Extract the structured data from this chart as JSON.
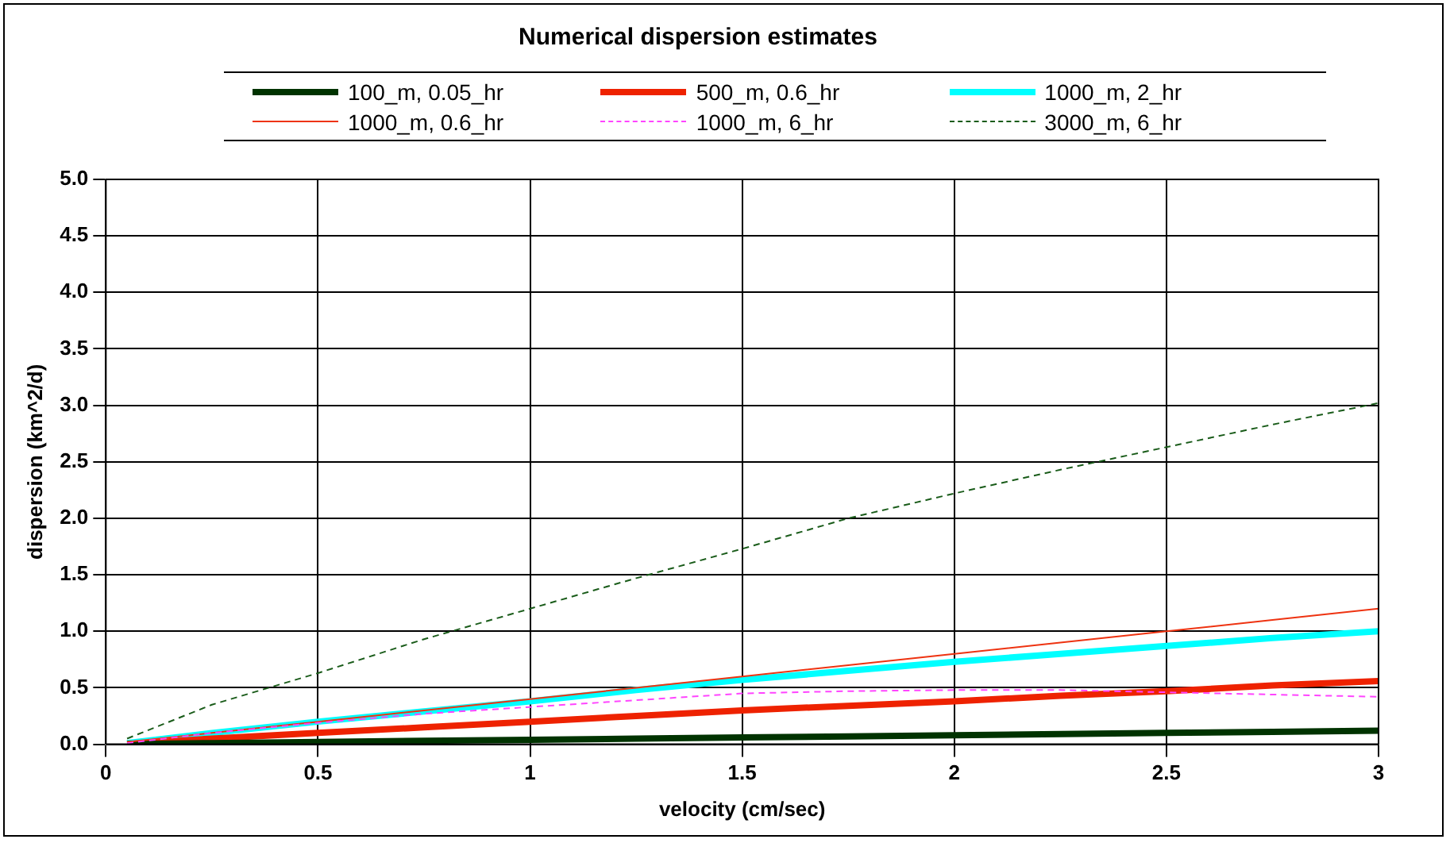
{
  "chart_data": {
    "type": "line",
    "title": "Numerical dispersion estimates",
    "xlabel": "velocity (cm/sec)",
    "ylabel": "dispersion (km^2/d)",
    "x": [
      0.05,
      0.25,
      0.5,
      0.75,
      1,
      1.25,
      1.5,
      1.75,
      2,
      2.25,
      2.5,
      2.75,
      3
    ],
    "series": [
      {
        "name": "100_m, 0.05_hr",
        "color": "#003300",
        "line_style": "solid",
        "values": [
          0.0,
          0.01,
          0.02,
          0.03,
          0.04,
          0.05,
          0.06,
          0.07,
          0.08,
          0.09,
          0.1,
          0.11,
          0.12
        ]
      },
      {
        "name": "500_m, 0.6_hr",
        "color": "#ee2200",
        "line_style": "solid",
        "values": [
          0.0,
          0.05,
          0.1,
          0.15,
          0.2,
          0.25,
          0.3,
          0.34,
          0.38,
          0.43,
          0.47,
          0.52,
          0.56
        ]
      },
      {
        "name": "1000_m, 2_hr",
        "color": "#00ffff",
        "line_style": "solid",
        "values": [
          0.01,
          0.1,
          0.2,
          0.29,
          0.38,
          0.48,
          0.57,
          0.65,
          0.73,
          0.8,
          0.87,
          0.94,
          1.0
        ]
      },
      {
        "name": "1000_m, 0.6_hr",
        "color": "#ee3311",
        "line_style": "solid",
        "values": [
          0.02,
          0.1,
          0.2,
          0.3,
          0.4,
          0.5,
          0.6,
          0.7,
          0.8,
          0.9,
          1.0,
          1.1,
          1.2
        ]
      },
      {
        "name": "1000_m, 6_hr",
        "color": "#ff44ff",
        "line_style": "dashed",
        "values": [
          0.01,
          0.1,
          0.19,
          0.27,
          0.33,
          0.39,
          0.45,
          0.47,
          0.48,
          0.48,
          0.46,
          0.44,
          0.42
        ]
      },
      {
        "name": "3000_m, 6_hr",
        "color": "#1a5c1a",
        "line_style": "dashed",
        "values": [
          0.05,
          0.35,
          0.63,
          0.93,
          1.2,
          1.47,
          1.73,
          2.0,
          2.22,
          2.43,
          2.63,
          2.83,
          3.02
        ]
      }
    ],
    "xlim": [
      0,
      3
    ],
    "xticks": [
      0,
      0.5,
      1,
      1.5,
      2,
      2.5,
      3
    ],
    "ylim": [
      0,
      5
    ],
    "yticks": [
      {
        "value": 0,
        "label": "0.0"
      },
      {
        "value": 0.5,
        "label": "0.5"
      },
      {
        "value": 1,
        "label": "1.0"
      },
      {
        "value": 1.5,
        "label": "1.5"
      },
      {
        "value": 2,
        "label": "2.0"
      },
      {
        "value": 2.5,
        "label": "2.5"
      },
      {
        "value": 3,
        "label": "3.0"
      },
      {
        "value": 3.5,
        "label": "3.5"
      },
      {
        "value": 4,
        "label": "4.0"
      },
      {
        "value": 4.5,
        "label": "4.5"
      },
      {
        "value": 5,
        "label": "5.0"
      }
    ],
    "grid": true,
    "legend": "top",
    "marker": "none"
  }
}
